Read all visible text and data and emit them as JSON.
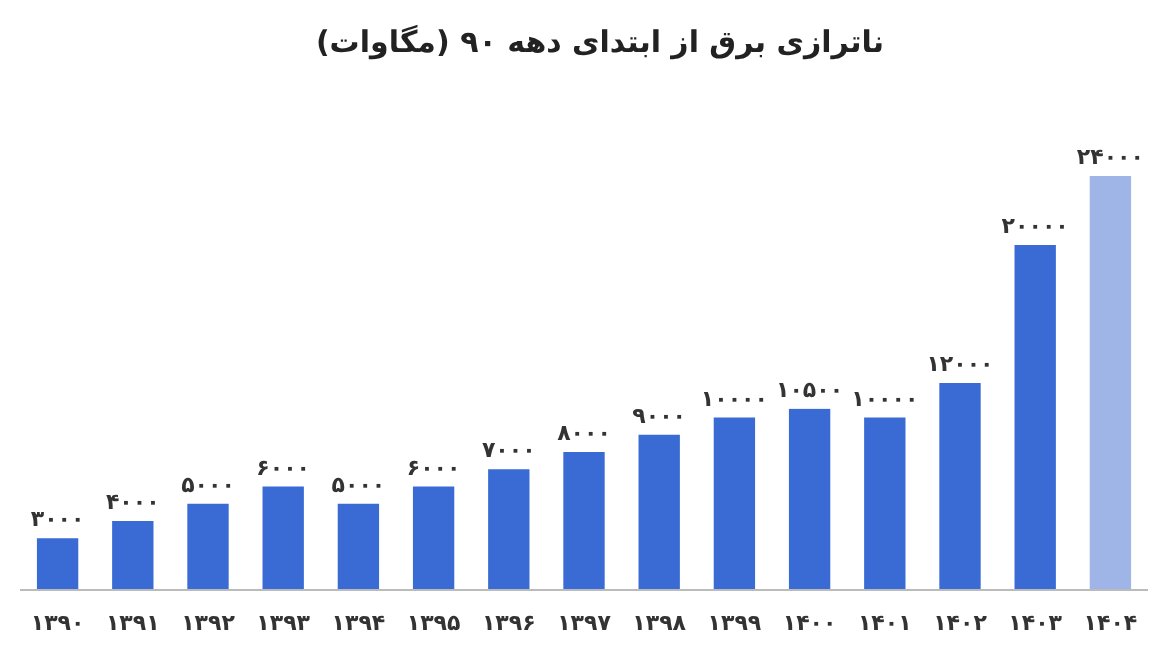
{
  "chart_data": {
    "type": "bar",
    "title": "ناترازی برق از ابتدای دهه ۹۰ (مگاوات)",
    "categories": [
      "۱۳۹۰",
      "۱۳۹۱",
      "۱۳۹۲",
      "۱۳۹۳",
      "۱۳۹۴",
      "۱۳۹۵",
      "۱۳۹۶",
      "۱۳۹۷",
      "۱۳۹۸",
      "۱۳۹۹",
      "۱۴۰۰",
      "۱۴۰۱",
      "۱۴۰۲",
      "۱۴۰۳",
      "۱۴۰۴"
    ],
    "values": [
      3000,
      4000,
      5000,
      6000,
      5000,
      6000,
      7000,
      8000,
      9000,
      10000,
      10500,
      10000,
      12000,
      20000,
      24000
    ],
    "value_labels": [
      "۳۰۰۰",
      "۴۰۰۰",
      "۵۰۰۰",
      "۶۰۰۰",
      "۵۰۰۰",
      "۶۰۰۰",
      "۷۰۰۰",
      "۸۰۰۰",
      "۹۰۰۰",
      "۱۰۰۰۰",
      "۱۰۵۰۰",
      "۱۰۰۰۰",
      "۱۲۰۰۰",
      "۲۰۰۰۰",
      "۲۴۰۰۰"
    ],
    "colors": [
      "#3a6bd4",
      "#3a6bd4",
      "#3a6bd4",
      "#3a6bd4",
      "#3a6bd4",
      "#3a6bd4",
      "#3a6bd4",
      "#3a6bd4",
      "#3a6bd4",
      "#3a6bd4",
      "#3a6bd4",
      "#3a6bd4",
      "#3a6bd4",
      "#3a6bd4",
      "#9fb5e8"
    ]
  }
}
